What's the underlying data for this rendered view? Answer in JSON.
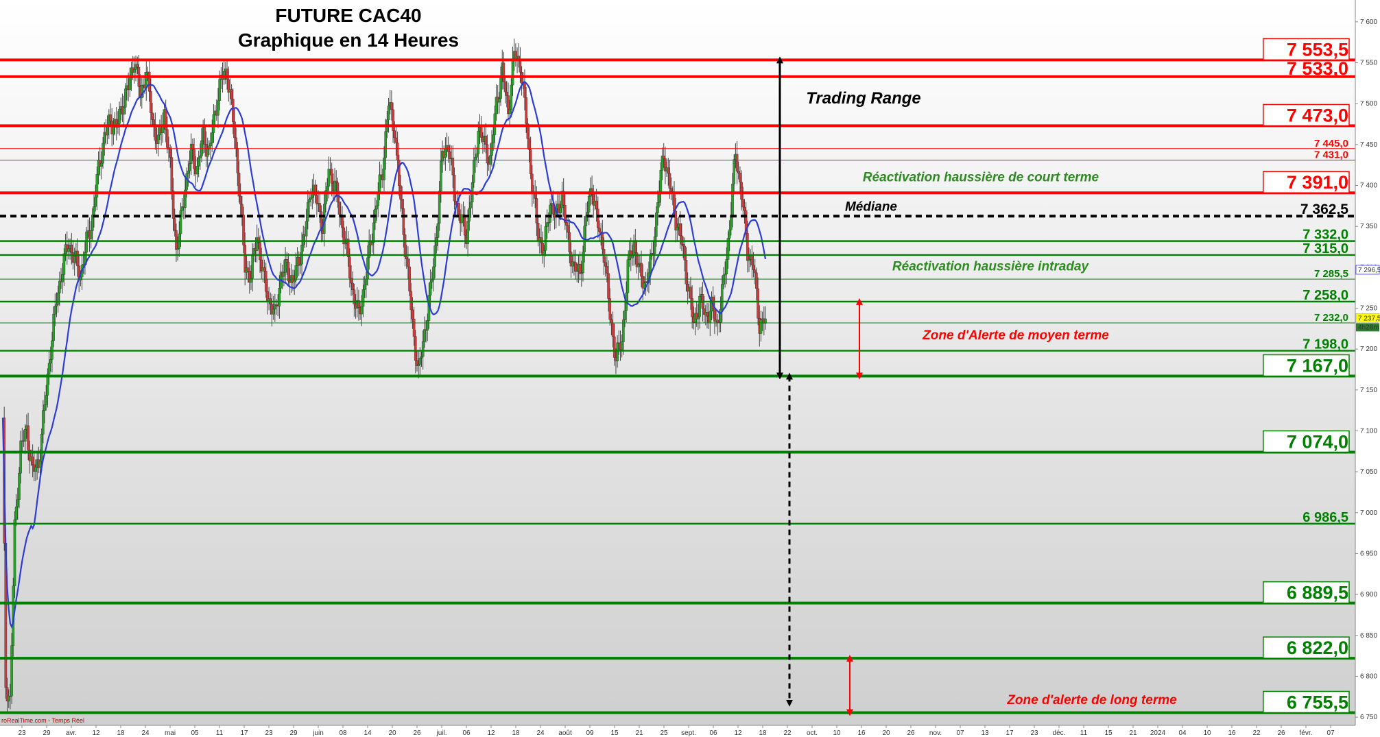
{
  "chart_data": {
    "type": "candlestick",
    "title": "FUTURE CAC40",
    "subtitle": "Graphique en 14 Heures",
    "watermark": "roRealTime.com - Temps Réel",
    "ylim": [
      6740,
      7620
    ],
    "y_ticks": [
      "7 600",
      "7 550",
      "7 500",
      "7 450",
      "7 400",
      "7 350",
      "7 300",
      "7 250",
      "7 200",
      "7 150",
      "7 100",
      "7 050",
      "7 000",
      "6 950",
      "6 900",
      "6 850",
      "6 800",
      "6 750"
    ],
    "y_tick_values": [
      7600,
      7550,
      7500,
      7450,
      7400,
      7350,
      7300,
      7250,
      7200,
      7150,
      7100,
      7050,
      7000,
      6950,
      6900,
      6850,
      6800,
      6750
    ],
    "x_ticks": [
      "23",
      "29",
      "avr.",
      "12",
      "18",
      "24",
      "mai",
      "05",
      "11",
      "17",
      "23",
      "29",
      "juin",
      "08",
      "14",
      "20",
      "26",
      "juil.",
      "06",
      "12",
      "18",
      "24",
      "août",
      "09",
      "15",
      "21",
      "25",
      "sept.",
      "06",
      "12",
      "18",
      "22",
      "oct.",
      "10",
      "16",
      "20",
      "26",
      "nov.",
      "07",
      "13",
      "17",
      "23",
      "déc.",
      "11",
      "15",
      "21",
      "2024",
      "04",
      "10",
      "16",
      "22",
      "26",
      "févr.",
      "07"
    ],
    "price_badges": {
      "last": "7 237,5",
      "last_color": "#ffff00",
      "timer": "4h28m",
      "timer_color": "#2e7d32",
      "ma_value": "7 296,5",
      "ma_color": "#3a3aff"
    },
    "levels": [
      {
        "value": 7553.5,
        "label": "7 553,5",
        "color": "#ff0000",
        "weight": "major",
        "boxed": true
      },
      {
        "value": 7533.0,
        "label": "7 533,0",
        "color": "#ff0000",
        "weight": "major",
        "boxed": false
      },
      {
        "value": 7473.0,
        "label": "7 473,0",
        "color": "#ff0000",
        "weight": "major",
        "boxed": true
      },
      {
        "value": 7445.0,
        "label": "7 445,0",
        "color": "#ff0000",
        "weight": "minor",
        "boxed": false
      },
      {
        "value": 7431.0,
        "label": "7 431,0",
        "color": "#ff0000",
        "weight": "minor",
        "boxed": false
      },
      {
        "value": 7391.0,
        "label": "7 391,0",
        "color": "#ff0000",
        "weight": "major",
        "boxed": true
      },
      {
        "value": 7362.5,
        "label": "7 362,5",
        "color": "#000000",
        "weight": "dashed",
        "boxed": false
      },
      {
        "value": 7332.0,
        "label": "7 332,0",
        "color": "#008000",
        "weight": "medium",
        "boxed": false
      },
      {
        "value": 7315.0,
        "label": "7 315,0",
        "color": "#008000",
        "weight": "medium",
        "boxed": false
      },
      {
        "value": 7285.5,
        "label": "7 285,5",
        "color": "#008000",
        "weight": "minor",
        "boxed": false
      },
      {
        "value": 7258.0,
        "label": "7 258,0",
        "color": "#008000",
        "weight": "medium",
        "boxed": false
      },
      {
        "value": 7232.0,
        "label": "7 232,0",
        "color": "#008000",
        "weight": "minor",
        "boxed": false
      },
      {
        "value": 7198.0,
        "label": "7 198,0",
        "color": "#008000",
        "weight": "medium",
        "boxed": false
      },
      {
        "value": 7167.0,
        "label": "7 167,0",
        "color": "#008000",
        "weight": "major",
        "boxed": true
      },
      {
        "value": 7074.0,
        "label": "7 074,0",
        "color": "#008000",
        "weight": "major",
        "boxed": true
      },
      {
        "value": 6986.5,
        "label": "6 986,5",
        "color": "#008000",
        "weight": "medium",
        "boxed": false
      },
      {
        "value": 6889.5,
        "label": "6 889,5",
        "color": "#008000",
        "weight": "major",
        "boxed": true
      },
      {
        "value": 6822.0,
        "label": "6 822,0",
        "color": "#008000",
        "weight": "major",
        "boxed": true
      },
      {
        "value": 6755.5,
        "label": "6 755,5",
        "color": "#008000",
        "weight": "major",
        "boxed": true
      }
    ],
    "annotations": [
      {
        "text": "Trading Range",
        "color": "#000000",
        "anchor_value": 7500
      },
      {
        "text": "Réactivation haussière de court terme",
        "color": "#2e8b22",
        "anchor_value": 7405
      },
      {
        "text": "Médiane",
        "color": "#000000",
        "anchor_value": 7369
      },
      {
        "text": "Réactivation haussière intraday",
        "color": "#2e8b22",
        "anchor_value": 7296
      },
      {
        "text": "Zone d'Alerte de moyen terme",
        "color": "#ff0000",
        "anchor_value": 7212
      },
      {
        "text": "Zone d'alerte de long terme",
        "color": "#ff0000",
        "anchor_value": 6766
      }
    ],
    "ranges": [
      {
        "name": "trading-range",
        "from": 7553.5,
        "to": 7167.0,
        "color": "#000000",
        "style": "solid"
      },
      {
        "name": "downside-projection",
        "from": 7167.0,
        "to": 6767.0,
        "color": "#000000",
        "style": "dashed"
      },
      {
        "name": "medium-term-alert",
        "from": 7258.0,
        "to": 7167.0,
        "color": "#ff0000",
        "style": "solid"
      },
      {
        "name": "long-term-alert",
        "from": 6822.0,
        "to": 6755.5,
        "color": "#ff0000",
        "style": "solid"
      }
    ],
    "moving_average_color": "#2b3bd6",
    "up_color": "#2aa22a",
    "down_color": "#d23b3b",
    "series": [
      {
        "name": "",
        "anchors": [
          [
            0,
            7110
          ],
          [
            2,
            6790
          ],
          [
            5,
            6770
          ],
          [
            8,
            6980
          ],
          [
            12,
            7080
          ],
          [
            16,
            7100
          ],
          [
            20,
            7050
          ],
          [
            24,
            7060
          ],
          [
            28,
            7130
          ],
          [
            32,
            7200
          ],
          [
            36,
            7260
          ],
          [
            40,
            7300
          ],
          [
            44,
            7330
          ],
          [
            48,
            7310
          ],
          [
            52,
            7290
          ],
          [
            56,
            7330
          ],
          [
            60,
            7360
          ],
          [
            64,
            7420
          ],
          [
            68,
            7460
          ],
          [
            72,
            7480
          ],
          [
            76,
            7470
          ],
          [
            80,
            7500
          ],
          [
            84,
            7520
          ],
          [
            88,
            7555
          ],
          [
            92,
            7510
          ],
          [
            96,
            7540
          ],
          [
            100,
            7480
          ],
          [
            104,
            7450
          ],
          [
            108,
            7490
          ],
          [
            112,
            7420
          ],
          [
            116,
            7320
          ],
          [
            118,
            7340
          ],
          [
            122,
            7400
          ],
          [
            126,
            7440
          ],
          [
            130,
            7420
          ],
          [
            134,
            7460
          ],
          [
            138,
            7440
          ],
          [
            142,
            7490
          ],
          [
            146,
            7530
          ],
          [
            150,
            7540
          ],
          [
            154,
            7480
          ],
          [
            158,
            7400
          ],
          [
            162,
            7300
          ],
          [
            166,
            7290
          ],
          [
            170,
            7340
          ],
          [
            174,
            7290
          ],
          [
            178,
            7260
          ],
          [
            182,
            7240
          ],
          [
            186,
            7290
          ],
          [
            190,
            7300
          ],
          [
            194,
            7280
          ],
          [
            198,
            7310
          ],
          [
            202,
            7340
          ],
          [
            206,
            7400
          ],
          [
            210,
            7380
          ],
          [
            214,
            7350
          ],
          [
            218,
            7420
          ],
          [
            222,
            7400
          ],
          [
            226,
            7360
          ],
          [
            230,
            7320
          ],
          [
            234,
            7270
          ],
          [
            238,
            7240
          ],
          [
            242,
            7280
          ],
          [
            246,
            7330
          ],
          [
            250,
            7380
          ],
          [
            254,
            7420
          ],
          [
            258,
            7500
          ],
          [
            262,
            7470
          ],
          [
            266,
            7380
          ],
          [
            270,
            7310
          ],
          [
            274,
            7230
          ],
          [
            278,
            7170
          ],
          [
            282,
            7220
          ],
          [
            286,
            7270
          ],
          [
            290,
            7340
          ],
          [
            294,
            7440
          ],
          [
            298,
            7450
          ],
          [
            302,
            7390
          ],
          [
            306,
            7360
          ],
          [
            310,
            7340
          ],
          [
            314,
            7400
          ],
          [
            318,
            7470
          ],
          [
            322,
            7450
          ],
          [
            326,
            7430
          ],
          [
            330,
            7500
          ],
          [
            334,
            7540
          ],
          [
            338,
            7490
          ],
          [
            342,
            7560
          ],
          [
            346,
            7550
          ],
          [
            350,
            7480
          ],
          [
            354,
            7400
          ],
          [
            358,
            7340
          ],
          [
            362,
            7320
          ],
          [
            366,
            7380
          ],
          [
            370,
            7360
          ],
          [
            374,
            7390
          ],
          [
            378,
            7330
          ],
          [
            382,
            7300
          ],
          [
            386,
            7290
          ],
          [
            390,
            7360
          ],
          [
            394,
            7400
          ],
          [
            398,
            7350
          ],
          [
            402,
            7320
          ],
          [
            406,
            7240
          ],
          [
            410,
            7190
          ],
          [
            414,
            7210
          ],
          [
            418,
            7300
          ],
          [
            422,
            7330
          ],
          [
            426,
            7290
          ],
          [
            430,
            7280
          ],
          [
            434,
            7310
          ],
          [
            438,
            7380
          ],
          [
            442,
            7440
          ],
          [
            446,
            7400
          ],
          [
            450,
            7360
          ],
          [
            454,
            7330
          ],
          [
            458,
            7280
          ],
          [
            462,
            7230
          ],
          [
            466,
            7260
          ],
          [
            470,
            7240
          ],
          [
            474,
            7250
          ],
          [
            478,
            7230
          ],
          [
            482,
            7280
          ],
          [
            486,
            7350
          ],
          [
            490,
            7440
          ],
          [
            494,
            7390
          ],
          [
            498,
            7320
          ],
          [
            502,
            7300
          ],
          [
            506,
            7230
          ],
          [
            510,
            7237
          ]
        ]
      }
    ]
  }
}
